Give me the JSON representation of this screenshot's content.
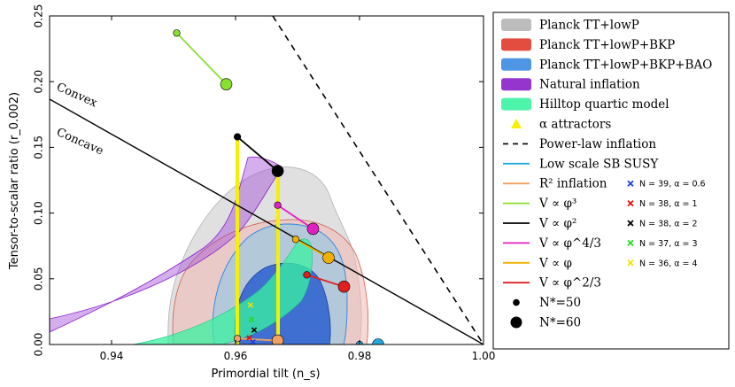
{
  "chart_data": {
    "type": "scatter",
    "xlabel": "Primordial tilt (n_s)",
    "ylabel": "Tensor-to-scalar ratio (r_0.002)",
    "xlim": [
      0.93,
      1.0
    ],
    "ylim": [
      0.0,
      0.25
    ],
    "xticks": [
      "0.94",
      "0.96",
      "0.98",
      "1.00"
    ],
    "yticks": [
      "0.00",
      "0.05",
      "0.10",
      "0.15",
      "0.20",
      "0.25"
    ],
    "annotations": [
      "Convex",
      "Concave"
    ],
    "legend": [
      {
        "label": "Planck TT+lowP",
        "kind": "patch",
        "color": "#b5b5b5"
      },
      {
        "label": "Planck TT+lowP+BKP",
        "kind": "patch",
        "color": "#e03a2a"
      },
      {
        "label": "Planck TT+lowP+BKP+BAO",
        "kind": "patch",
        "color": "#3b8be0"
      },
      {
        "label": "Natural inflation",
        "kind": "patch",
        "color": "#8a1fc9"
      },
      {
        "label": "Hilltop quartic model",
        "kind": "patch",
        "color": "#3af2a0"
      },
      {
        "label": "α attractors",
        "kind": "triangle",
        "color": "#f5f000"
      },
      {
        "label": "Power-law inflation",
        "kind": "dashed",
        "color": "#000000"
      },
      {
        "label": "Low scale SB SUSY",
        "kind": "line",
        "color": "#22aadd"
      },
      {
        "label": "R² inflation",
        "kind": "line",
        "color": "#f0a060"
      },
      {
        "label": "V ∝ φ³",
        "kind": "line",
        "color": "#88e030"
      },
      {
        "label": "V ∝ φ²",
        "kind": "line",
        "color": "#000000"
      },
      {
        "label": "V ∝ φ^4/3",
        "kind": "line",
        "color": "#e020c0"
      },
      {
        "label": "V ∝ φ",
        "kind": "line",
        "color": "#f0b000"
      },
      {
        "label": "V ∝ φ^2/3",
        "kind": "line",
        "color": "#e02020"
      },
      {
        "label": "N*=50",
        "kind": "dot-small",
        "color": "#000000"
      },
      {
        "label": "N*=60",
        "kind": "dot-large",
        "color": "#000000"
      }
    ],
    "alpha_legend": [
      {
        "label": "N = 39, α = 0.6",
        "color": "#1a3fe0"
      },
      {
        "label": "N = 38, α = 1",
        "color": "#e01010"
      },
      {
        "label": "N = 38, α = 2",
        "color": "#000000"
      },
      {
        "label": "N = 37, α = 3",
        "color": "#22dd22"
      },
      {
        "label": "N = 36, α = 4",
        "color": "#f0e000"
      }
    ],
    "series": [
      {
        "name": "V ∝ φ³",
        "color": "#88e030",
        "points": [
          [
            0.9505,
            0.237
          ],
          [
            0.9585,
            0.198
          ]
        ]
      },
      {
        "name": "V ∝ φ²",
        "color": "#000000",
        "points": [
          [
            0.9603,
            0.158
          ],
          [
            0.9668,
            0.132
          ]
        ]
      },
      {
        "name": "V ∝ φ^4/3",
        "color": "#e020c0",
        "points": [
          [
            0.9668,
            0.106
          ],
          [
            0.9725,
            0.088
          ]
        ]
      },
      {
        "name": "V ∝ φ",
        "color": "#f0b000",
        "points": [
          [
            0.9697,
            0.08
          ],
          [
            0.975,
            0.066
          ]
        ]
      },
      {
        "name": "V ∝ φ^2/3",
        "color": "#e02020",
        "points": [
          [
            0.9715,
            0.053
          ],
          [
            0.9775,
            0.044
          ]
        ]
      },
      {
        "name": "R² inflation",
        "color": "#f0a060",
        "points": [
          [
            0.9603,
            0.0045
          ],
          [
            0.9668,
            0.003
          ]
        ]
      },
      {
        "name": "Low scale SB SUSY",
        "color": "#22aadd",
        "points": [
          [
            0.98,
            0.0
          ],
          [
            0.983,
            0.0
          ]
        ]
      }
    ],
    "alpha_points": [
      {
        "x": 0.9628,
        "y": 0.002,
        "color": "#1a3fe0"
      },
      {
        "x": 0.9622,
        "y": 0.005,
        "color": "#e01010"
      },
      {
        "x": 0.963,
        "y": 0.011,
        "color": "#000000"
      },
      {
        "x": 0.9626,
        "y": 0.019,
        "color": "#22dd22"
      },
      {
        "x": 0.9624,
        "y": 0.03,
        "color": "#f0e000"
      }
    ],
    "power_law_line": [
      [
        0.966,
        0.25
      ],
      [
        1.0,
        0.0
      ]
    ],
    "convexity_line": [
      [
        0.93,
        0.1867
      ],
      [
        1.0,
        0.0
      ]
    ]
  }
}
